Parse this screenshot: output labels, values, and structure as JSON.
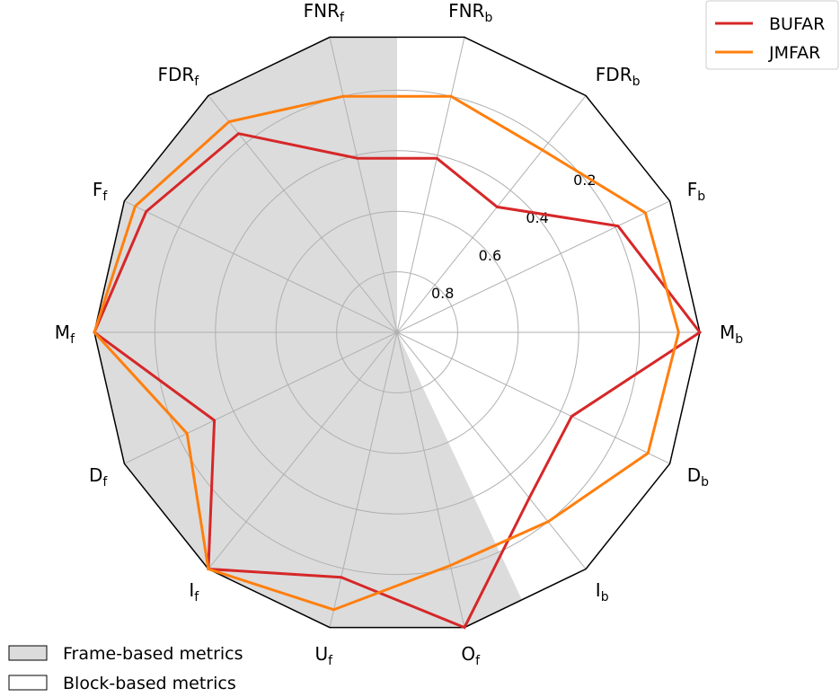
{
  "chart_data": {
    "type": "radar",
    "axes": [
      {
        "name": "FNR",
        "sub": "b"
      },
      {
        "name": "FDR",
        "sub": "b"
      },
      {
        "name": "F",
        "sub": "b"
      },
      {
        "name": "M",
        "sub": "b"
      },
      {
        "name": "D",
        "sub": "b"
      },
      {
        "name": "I",
        "sub": "b"
      },
      {
        "name": "O",
        "sub": "f"
      },
      {
        "name": "U",
        "sub": "f"
      },
      {
        "name": "I",
        "sub": "f"
      },
      {
        "name": "D",
        "sub": "f"
      },
      {
        "name": "M",
        "sub": "f"
      },
      {
        "name": "F",
        "sub": "f"
      },
      {
        "name": "FDR",
        "sub": "f"
      },
      {
        "name": "FNR",
        "sub": "f"
      }
    ],
    "radial_scale": "inverted",
    "rlim": [
      0,
      1
    ],
    "rticks": [
      "0.2",
      "0.4",
      "0.6",
      "0.8"
    ],
    "rtick_values": [
      0.2,
      0.4,
      0.6,
      0.8
    ],
    "shaded_region": "frame-based metrics (from FNR_f through O_f)",
    "series": [
      {
        "name": "BUFAR",
        "color": "#d62728",
        "values": [
          0.41,
          0.47,
          0.19,
          0.0,
          0.36,
          0.3,
          0.0,
          0.17,
          0.0,
          0.33,
          0.0,
          0.08,
          0.16,
          0.41
        ]
      },
      {
        "name": "JMFAR",
        "color": "#ff7f0e",
        "values": [
          0.2,
          0.23,
          0.09,
          0.07,
          0.08,
          0.2,
          0.21,
          0.06,
          0.0,
          0.23,
          0.0,
          0.04,
          0.11,
          0.2
        ]
      }
    ],
    "legend": [
      {
        "label": "BUFAR",
        "color": "#d62728"
      },
      {
        "label": "JMFAR",
        "color": "#ff7f0e"
      }
    ],
    "legend_position": "top-right",
    "patch_legend": [
      {
        "label": "Frame-based metrics",
        "fill": "#dcdcdc"
      },
      {
        "label": "Block-based metrics",
        "fill": "#ffffff"
      }
    ],
    "patch_legend_position": "bottom-left",
    "grid": true
  }
}
